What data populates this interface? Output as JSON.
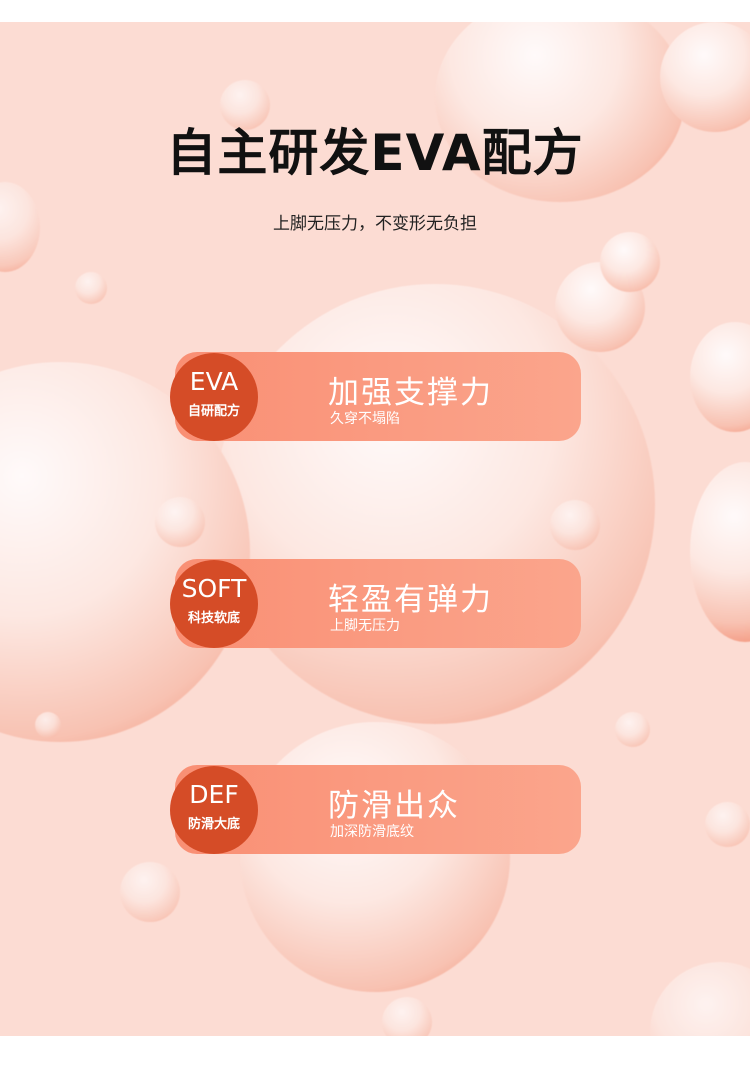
{
  "header": {
    "title": "自主研发EVA配方",
    "subtitle": "上脚无压力，不变形无负担"
  },
  "features": [
    {
      "badge_main": "EVA",
      "badge_sub": "自研配方",
      "heading": "加强支撑力",
      "desc": "久穿不塌陷"
    },
    {
      "badge_main": "SOFT",
      "badge_sub": "科技软底",
      "heading": "轻盈有弹力",
      "desc": "上脚无压力"
    },
    {
      "badge_main": "DEF",
      "badge_sub": "防滑大底",
      "heading": "防滑出众",
      "desc": "加深防滑底纹"
    }
  ],
  "colors": {
    "background": "#fcdcd3",
    "badge": "#d54c27",
    "card": "#f98f74"
  }
}
